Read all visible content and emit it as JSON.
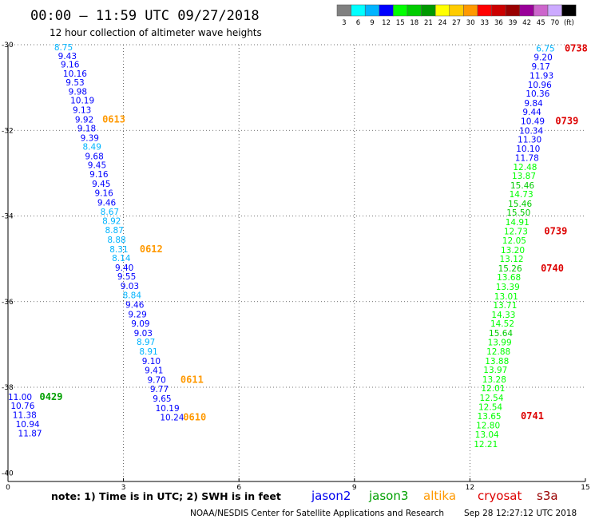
{
  "header": {
    "title": "00:00 – 11:59 UTC 09/27/2018",
    "subtitle": "12 hour collection of altimeter wave heights"
  },
  "color_scale": {
    "colors": [
      "#808080",
      "#00ffff",
      "#00b4ff",
      "#0000ff",
      "#00ff00",
      "#00cc00",
      "#009900",
      "#ffff00",
      "#ffcc00",
      "#ff9900",
      "#ff0000",
      "#cc0000",
      "#990000",
      "#990099",
      "#cc66cc",
      "#ccaaff",
      "#000000"
    ],
    "labels": [
      "3",
      "6",
      "9",
      "12",
      "15",
      "18",
      "21",
      "24",
      "27",
      "30",
      "33",
      "36",
      "39",
      "42",
      "45",
      "70",
      "(ft)"
    ]
  },
  "footer": {
    "note": "note:  1) Time is in UTC;  2) SWH is in feet",
    "credit": "NOAA/NESDIS Center for Satellite Applications and Research",
    "timestamp": "Sep 28 12:27:12 UTC 2018"
  },
  "satellites": [
    {
      "name": "jason2",
      "color": "#0000ee"
    },
    {
      "name": "jason3",
      "color": "#00a000"
    },
    {
      "name": "altika",
      "color": "#ff9900"
    },
    {
      "name": "cryosat",
      "color": "#dd0000"
    },
    {
      "name": "s3a",
      "color": "#990000"
    }
  ],
  "chart_data": {
    "type": "scatter",
    "title": "00:00 – 11:59 UTC 09/27/2018",
    "subtitle": "12 hour collection of altimeter wave heights",
    "x_ticks": [
      "0",
      "3",
      "6",
      "9",
      "12",
      "15"
    ],
    "y_ticks": [
      "-30",
      "-32",
      "-34",
      "-36",
      "-38",
      "-40"
    ],
    "xlim": [
      0,
      15
    ],
    "ylim": [
      -40.2,
      -30
    ],
    "grid": true,
    "tracks": [
      {
        "name": "left-track",
        "points": [
          {
            "lon": 1.2,
            "lat": -30.06,
            "v": "8.75"
          },
          {
            "lon": 1.3,
            "lat": -30.26,
            "v": "9.43"
          },
          {
            "lon": 1.37,
            "lat": -30.46,
            "v": "9.16"
          },
          {
            "lon": 1.43,
            "lat": -30.67,
            "v": "10.16"
          },
          {
            "lon": 1.5,
            "lat": -30.88,
            "v": "9.53"
          },
          {
            "lon": 1.57,
            "lat": -31.09,
            "v": "9.98"
          },
          {
            "lon": 1.62,
            "lat": -31.3,
            "v": "10.19"
          },
          {
            "lon": 1.68,
            "lat": -31.52,
            "v": "9.13"
          },
          {
            "lon": 1.74,
            "lat": -31.74,
            "v": "9.92"
          },
          {
            "lon": 1.8,
            "lat": -31.95,
            "v": "9.18"
          },
          {
            "lon": 1.88,
            "lat": -32.17,
            "v": "9.39"
          },
          {
            "lon": 1.94,
            "lat": -32.38,
            "v": "8.49"
          },
          {
            "lon": 2.0,
            "lat": -32.6,
            "v": "9.68"
          },
          {
            "lon": 2.07,
            "lat": -32.81,
            "v": "9.45"
          },
          {
            "lon": 2.12,
            "lat": -33.02,
            "v": "9.16"
          },
          {
            "lon": 2.18,
            "lat": -33.24,
            "v": "9.45"
          },
          {
            "lon": 2.25,
            "lat": -33.46,
            "v": "9.16"
          },
          {
            "lon": 2.32,
            "lat": -33.68,
            "v": "9.46"
          },
          {
            "lon": 2.4,
            "lat": -33.9,
            "v": "8.67"
          },
          {
            "lon": 2.45,
            "lat": -34.11,
            "v": "8.92"
          },
          {
            "lon": 2.52,
            "lat": -34.33,
            "v": "8.87"
          },
          {
            "lon": 2.58,
            "lat": -34.55,
            "v": "8.88"
          },
          {
            "lon": 2.64,
            "lat": -34.77,
            "v": "8.31"
          },
          {
            "lon": 2.7,
            "lat": -34.98,
            "v": "8.14"
          },
          {
            "lon": 2.78,
            "lat": -35.2,
            "v": "9.40"
          },
          {
            "lon": 2.84,
            "lat": -35.41,
            "v": "9.55"
          },
          {
            "lon": 2.92,
            "lat": -35.63,
            "v": "9.03"
          },
          {
            "lon": 2.98,
            "lat": -35.85,
            "v": "8.84"
          },
          {
            "lon": 3.05,
            "lat": -36.07,
            "v": "9.46"
          },
          {
            "lon": 3.12,
            "lat": -36.29,
            "v": "9.29"
          },
          {
            "lon": 3.2,
            "lat": -36.51,
            "v": "9.09"
          },
          {
            "lon": 3.27,
            "lat": -36.73,
            "v": "9.03"
          },
          {
            "lon": 3.34,
            "lat": -36.94,
            "v": "8.97"
          },
          {
            "lon": 3.41,
            "lat": -37.16,
            "v": "8.91"
          },
          {
            "lon": 3.48,
            "lat": -37.38,
            "v": "9.10"
          },
          {
            "lon": 3.55,
            "lat": -37.6,
            "v": "9.41"
          },
          {
            "lon": 3.62,
            "lat": -37.82,
            "v": "9.70"
          },
          {
            "lon": 3.69,
            "lat": -38.04,
            "v": "9.77"
          },
          {
            "lon": 3.76,
            "lat": -38.26,
            "v": "9.65"
          },
          {
            "lon": 3.83,
            "lat": -38.48,
            "v": "10.19"
          },
          {
            "lon": 3.95,
            "lat": -38.7,
            "v": "10.24"
          }
        ]
      },
      {
        "name": "bottom-left-track",
        "points": [
          {
            "lon": 0.0,
            "lat": -38.22,
            "v": "11.00"
          },
          {
            "lon": 0.07,
            "lat": -38.43,
            "v": "10.76"
          },
          {
            "lon": 0.12,
            "lat": -38.64,
            "v": "11.38"
          },
          {
            "lon": 0.2,
            "lat": -38.86,
            "v": "10.94"
          },
          {
            "lon": 0.26,
            "lat": -39.07,
            "v": "11.87"
          }
        ]
      },
      {
        "name": "right-track",
        "points": [
          {
            "lon": 13.72,
            "lat": -30.08,
            "v": "6.75"
          },
          {
            "lon": 13.66,
            "lat": -30.29,
            "v": "9.20"
          },
          {
            "lon": 13.6,
            "lat": -30.5,
            "v": "9.17"
          },
          {
            "lon": 13.55,
            "lat": -30.72,
            "v": "11.93"
          },
          {
            "lon": 13.5,
            "lat": -30.93,
            "v": "10.96"
          },
          {
            "lon": 13.45,
            "lat": -31.14,
            "v": "10.36"
          },
          {
            "lon": 13.41,
            "lat": -31.36,
            "v": "9.84"
          },
          {
            "lon": 13.37,
            "lat": -31.57,
            "v": "9.44"
          },
          {
            "lon": 13.32,
            "lat": -31.78,
            "v": "10.49"
          },
          {
            "lon": 13.28,
            "lat": -32.0,
            "v": "10.34"
          },
          {
            "lon": 13.24,
            "lat": -32.21,
            "v": "11.30"
          },
          {
            "lon": 13.2,
            "lat": -32.42,
            "v": "10.10"
          },
          {
            "lon": 13.17,
            "lat": -32.64,
            "v": "11.78"
          },
          {
            "lon": 13.12,
            "lat": -32.85,
            "v": "12.48"
          },
          {
            "lon": 13.09,
            "lat": -33.06,
            "v": "13.87"
          },
          {
            "lon": 13.05,
            "lat": -33.28,
            "v": "15.46"
          },
          {
            "lon": 13.02,
            "lat": -33.49,
            "v": "14.73"
          },
          {
            "lon": 12.99,
            "lat": -33.71,
            "v": "15.46"
          },
          {
            "lon": 12.95,
            "lat": -33.92,
            "v": "15.50"
          },
          {
            "lon": 12.92,
            "lat": -34.14,
            "v": "14.91"
          },
          {
            "lon": 12.88,
            "lat": -34.35,
            "v": "12.73"
          },
          {
            "lon": 12.84,
            "lat": -34.57,
            "v": "12.05"
          },
          {
            "lon": 12.8,
            "lat": -34.79,
            "v": "13.20"
          },
          {
            "lon": 12.77,
            "lat": -35.0,
            "v": "13.12"
          },
          {
            "lon": 12.73,
            "lat": -35.22,
            "v": "15.26"
          },
          {
            "lon": 12.7,
            "lat": -35.43,
            "v": "13.68"
          },
          {
            "lon": 12.67,
            "lat": -35.65,
            "v": "13.39"
          },
          {
            "lon": 12.63,
            "lat": -35.87,
            "v": "13.01"
          },
          {
            "lon": 12.6,
            "lat": -36.08,
            "v": "13.71"
          },
          {
            "lon": 12.56,
            "lat": -36.3,
            "v": "14.33"
          },
          {
            "lon": 12.53,
            "lat": -36.51,
            "v": "14.52"
          },
          {
            "lon": 12.49,
            "lat": -36.73,
            "v": "15.64"
          },
          {
            "lon": 12.46,
            "lat": -36.95,
            "v": "13.99"
          },
          {
            "lon": 12.43,
            "lat": -37.16,
            "v": "12.88"
          },
          {
            "lon": 12.39,
            "lat": -37.38,
            "v": "13.88"
          },
          {
            "lon": 12.35,
            "lat": -37.59,
            "v": "13.97"
          },
          {
            "lon": 12.32,
            "lat": -37.81,
            "v": "13.28"
          },
          {
            "lon": 12.29,
            "lat": -38.02,
            "v": "12.01"
          },
          {
            "lon": 12.25,
            "lat": -38.24,
            "v": "12.54"
          },
          {
            "lon": 12.22,
            "lat": -38.46,
            "v": "12.54"
          },
          {
            "lon": 12.19,
            "lat": -38.67,
            "v": "13.65"
          },
          {
            "lon": 12.16,
            "lat": -38.89,
            "v": "12.80"
          },
          {
            "lon": 12.13,
            "lat": -39.1,
            "v": "13.04"
          },
          {
            "lon": 12.1,
            "lat": -39.32,
            "v": "12.21"
          }
        ]
      }
    ],
    "time_labels": [
      {
        "lon": 2.45,
        "lat": -31.74,
        "text": "0613",
        "color": "#ff9900"
      },
      {
        "lon": 3.42,
        "lat": -34.77,
        "text": "0612",
        "color": "#ff9900"
      },
      {
        "lon": 4.48,
        "lat": -37.82,
        "text": "0611",
        "color": "#ff9900"
      },
      {
        "lon": 4.55,
        "lat": -38.7,
        "text": "0610",
        "color": "#ff9900"
      },
      {
        "lon": 0.82,
        "lat": -38.22,
        "text": "0429",
        "color": "#00a000"
      },
      {
        "lon": 14.46,
        "lat": -30.08,
        "text": "0738",
        "color": "#dd0000"
      },
      {
        "lon": 14.22,
        "lat": -31.78,
        "text": "0739",
        "color": "#dd0000"
      },
      {
        "lon": 13.93,
        "lat": -34.35,
        "text": "0739",
        "color": "#dd0000"
      },
      {
        "lon": 13.84,
        "lat": -35.22,
        "text": "0740",
        "color": "#dd0000"
      },
      {
        "lon": 13.32,
        "lat": -38.67,
        "text": "0741",
        "color": "#dd0000"
      }
    ]
  }
}
